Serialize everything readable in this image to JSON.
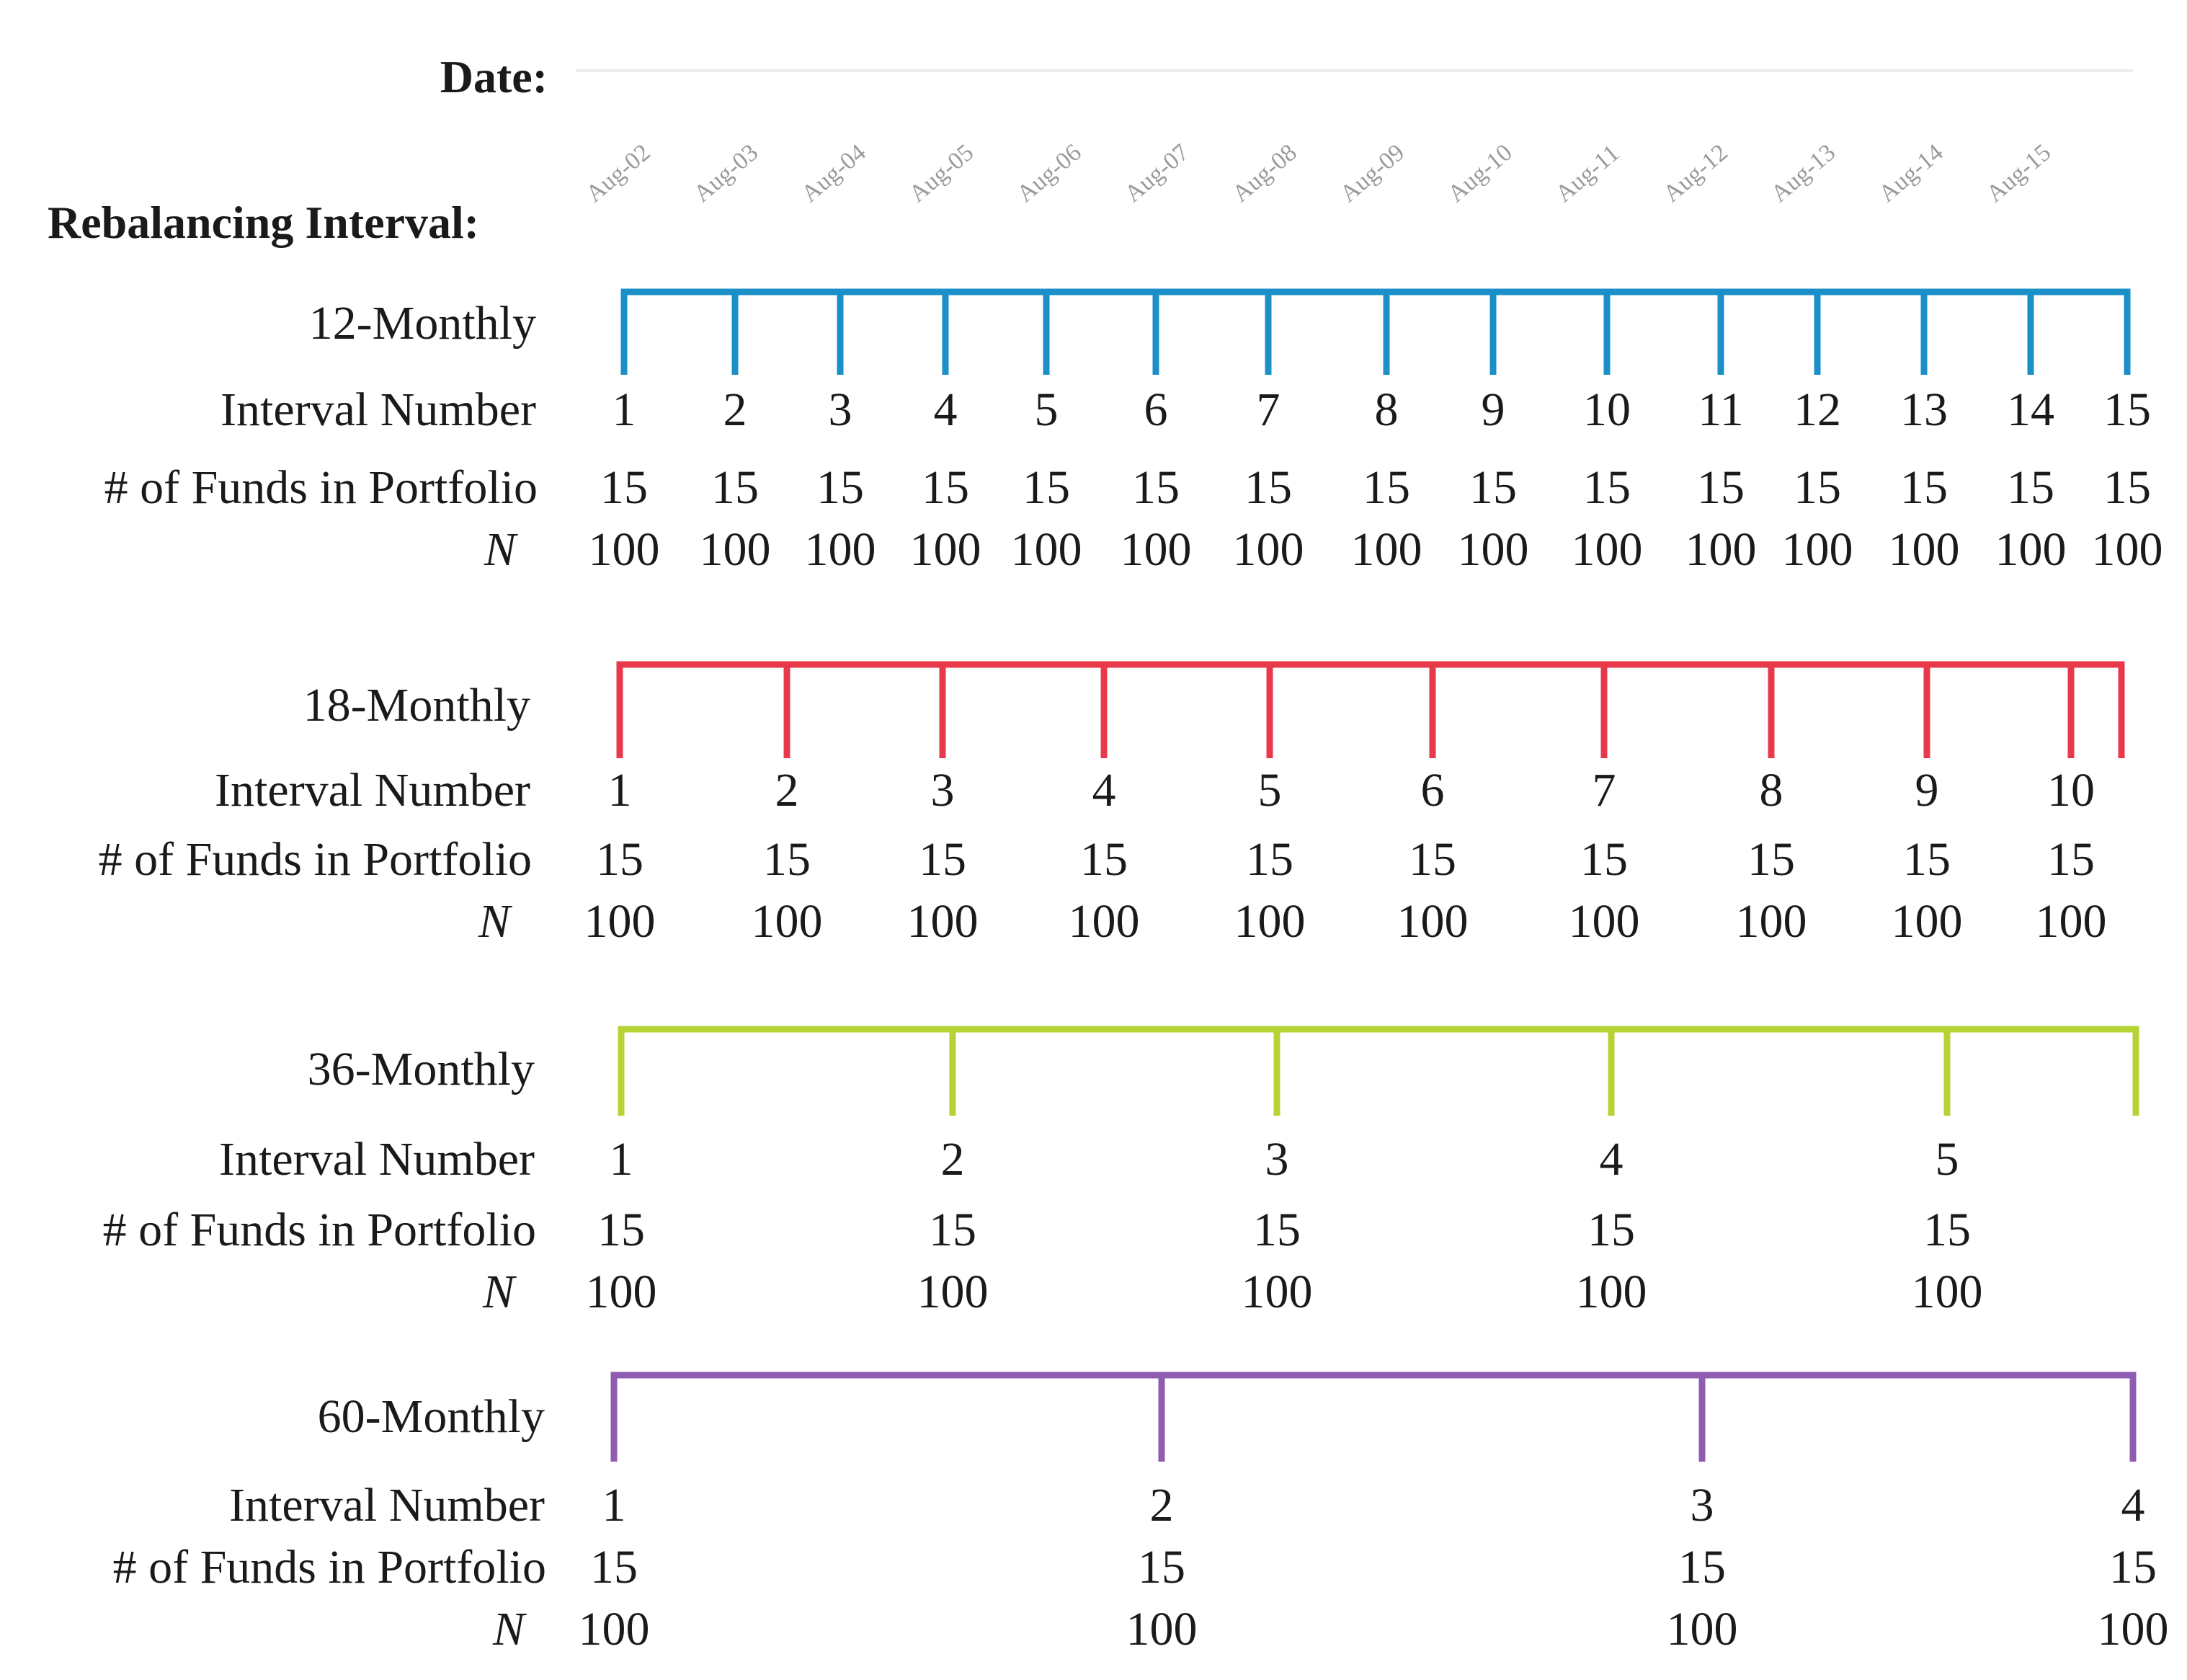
{
  "header": {
    "date_label": "Date:",
    "rebalancing_label": "Rebalancing Interval:"
  },
  "dates": [
    "Aug-02",
    "Aug-03",
    "Aug-04",
    "Aug-05",
    "Aug-06",
    "Aug-07",
    "Aug-08",
    "Aug-09",
    "Aug-10",
    "Aug-11",
    "Aug-12",
    "Aug-13",
    "Aug-14",
    "Aug-15"
  ],
  "row_labels": {
    "interval_number": "Interval Number",
    "funds": "# of Funds in Portfolio",
    "n": "N"
  },
  "colors": {
    "12-Monthly": "#1b8fc7",
    "18-Monthly": "#e8394b",
    "36-Monthly": "#b5d334",
    "60-Monthly": "#8e5cb0",
    "date_text": "#9a9a9a"
  },
  "panels": [
    {
      "name": "12-Monthly",
      "color": "#1b8fc7",
      "intervals": [
        "1",
        "2",
        "3",
        "4",
        "5",
        "6",
        "7",
        "8",
        "9",
        "10",
        "11",
        "12",
        "13",
        "14",
        "15"
      ],
      "funds": [
        "15",
        "15",
        "15",
        "15",
        "15",
        "15",
        "15",
        "15",
        "15",
        "15",
        "15",
        "15",
        "15",
        "15",
        "15"
      ],
      "n": [
        "100",
        "100",
        "100",
        "100",
        "100",
        "100",
        "100",
        "100",
        "100",
        "100",
        "100",
        "100",
        "100",
        "100",
        "100"
      ]
    },
    {
      "name": "18-Monthly",
      "color": "#e8394b",
      "intervals": [
        "1",
        "2",
        "3",
        "4",
        "5",
        "6",
        "7",
        "8",
        "9",
        "10"
      ],
      "funds": [
        "15",
        "15",
        "15",
        "15",
        "15",
        "15",
        "15",
        "15",
        "15",
        "15"
      ],
      "n": [
        "100",
        "100",
        "100",
        "100",
        "100",
        "100",
        "100",
        "100",
        "100",
        "100"
      ]
    },
    {
      "name": "36-Monthly",
      "color": "#b5d334",
      "intervals": [
        "1",
        "2",
        "3",
        "4",
        "5"
      ],
      "funds": [
        "15",
        "15",
        "15",
        "15",
        "15"
      ],
      "n": [
        "100",
        "100",
        "100",
        "100",
        "100"
      ]
    },
    {
      "name": "60-Monthly",
      "color": "#8e5cb0",
      "intervals": [
        "1",
        "2",
        "3",
        "4"
      ],
      "funds": [
        "15",
        "15",
        "15",
        "15"
      ],
      "n": [
        "100",
        "100",
        "100",
        "100"
      ]
    }
  ]
}
